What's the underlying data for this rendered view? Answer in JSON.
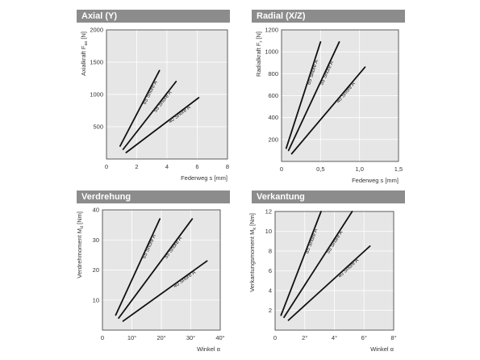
{
  "chart_data": [
    {
      "type": "line",
      "title": "Axial (Y)",
      "xlabel": "Federweg s [mm]",
      "ylabel": "Axialkraft Fax [N]",
      "ylabel_main": "Axialkraft F",
      "ylabel_sub": "ax",
      "ylabel_tail": " [N]",
      "xlim": [
        0,
        8
      ],
      "ylim": [
        0,
        2000
      ],
      "xticks": [
        0,
        2,
        4,
        6,
        8
      ],
      "xtick_labels": [
        "0",
        "2",
        "4",
        "6",
        "8"
      ],
      "yticks": [
        500,
        1000,
        1500,
        2000
      ],
      "ytick_labels": [
        "500",
        "1000",
        "1500",
        "2000"
      ],
      "grid": true,
      "series": [
        {
          "name": "65 Shore A",
          "x": [
            0.9,
            3.5
          ],
          "y": [
            200,
            1370
          ]
        },
        {
          "name": "55 Shore A",
          "x": [
            1.1,
            4.6
          ],
          "y": [
            150,
            1200
          ]
        },
        {
          "name": "40 Shore A",
          "x": [
            1.3,
            6.1
          ],
          "y": [
            100,
            950
          ]
        }
      ]
    },
    {
      "type": "line",
      "title": "Radial (X/Z)",
      "xlabel": "Federweg s [mm]",
      "ylabel": "Radialkraft Fr [N]",
      "ylabel_main": "Radialkraft F",
      "ylabel_sub": "r",
      "ylabel_tail": " [N]",
      "xlim": [
        0,
        1.5
      ],
      "ylim": [
        0,
        1200
      ],
      "xticks": [
        0,
        0.5,
        1.0,
        1.5
      ],
      "xtick_labels": [
        "0",
        "0,5",
        "1,0",
        "1,5"
      ],
      "yticks": [
        200,
        400,
        600,
        800,
        1000,
        1200
      ],
      "ytick_labels": [
        "200",
        "400",
        "600",
        "800",
        "1000",
        "1200"
      ],
      "grid": true,
      "series": [
        {
          "name": "65 Shore A",
          "x": [
            0.06,
            0.5
          ],
          "y": [
            120,
            1090
          ]
        },
        {
          "name": "55 Shore A",
          "x": [
            0.09,
            0.74
          ],
          "y": [
            100,
            1090
          ]
        },
        {
          "name": "40 Shore A",
          "x": [
            0.13,
            1.07
          ],
          "y": [
            70,
            860
          ]
        }
      ]
    },
    {
      "type": "line",
      "title": "Verdrehung",
      "xlabel": "Winkel α",
      "ylabel": "Verdrehmoment Md [Nm]",
      "ylabel_main": "Verdrehmoment M",
      "ylabel_sub": "d",
      "ylabel_tail": " [Nm]",
      "xlim": [
        0,
        40
      ],
      "ylim": [
        0,
        40
      ],
      "xticks": [
        0,
        10,
        20,
        30,
        40
      ],
      "xtick_labels": [
        "0",
        "10°",
        "20°",
        "30°",
        "40°"
      ],
      "yticks": [
        10,
        20,
        30,
        40
      ],
      "ytick_labels": [
        "10",
        "20",
        "30",
        "40"
      ],
      "grid": true,
      "series": [
        {
          "name": "65 Shore A",
          "x": [
            4.5,
            19.5
          ],
          "y": [
            5,
            37
          ]
        },
        {
          "name": "55 Shore A",
          "x": [
            5.5,
            30.5
          ],
          "y": [
            4,
            37
          ]
        },
        {
          "name": "40 Shore A",
          "x": [
            7,
            35.5
          ],
          "y": [
            3,
            23
          ]
        }
      ]
    },
    {
      "type": "line",
      "title": "Verkantung",
      "xlabel": "Winkel α",
      "ylabel": "Verkantungsmoment Mk [Nm]",
      "ylabel_main": "Verkantungsmoment M",
      "ylabel_sub": "k",
      "ylabel_tail": " [Nm]",
      "xlim": [
        0,
        8
      ],
      "ylim": [
        0,
        12
      ],
      "xticks": [
        0,
        2,
        4,
        6,
        8
      ],
      "xtick_labels": [
        "0",
        "2°",
        "4°",
        "6°",
        "8°"
      ],
      "yticks": [
        2,
        4,
        6,
        8,
        10,
        12
      ],
      "ytick_labels": [
        "2",
        "4",
        "6",
        "8",
        "10",
        "12"
      ],
      "grid": true,
      "series": [
        {
          "name": "65 Shore A",
          "x": [
            0.4,
            3.1
          ],
          "y": [
            1.5,
            12
          ]
        },
        {
          "name": "55 Shore A",
          "x": [
            0.6,
            5.2
          ],
          "y": [
            1.3,
            12
          ]
        },
        {
          "name": "40 Shore A",
          "x": [
            0.9,
            6.4
          ],
          "y": [
            1.0,
            8.5
          ]
        }
      ]
    }
  ]
}
